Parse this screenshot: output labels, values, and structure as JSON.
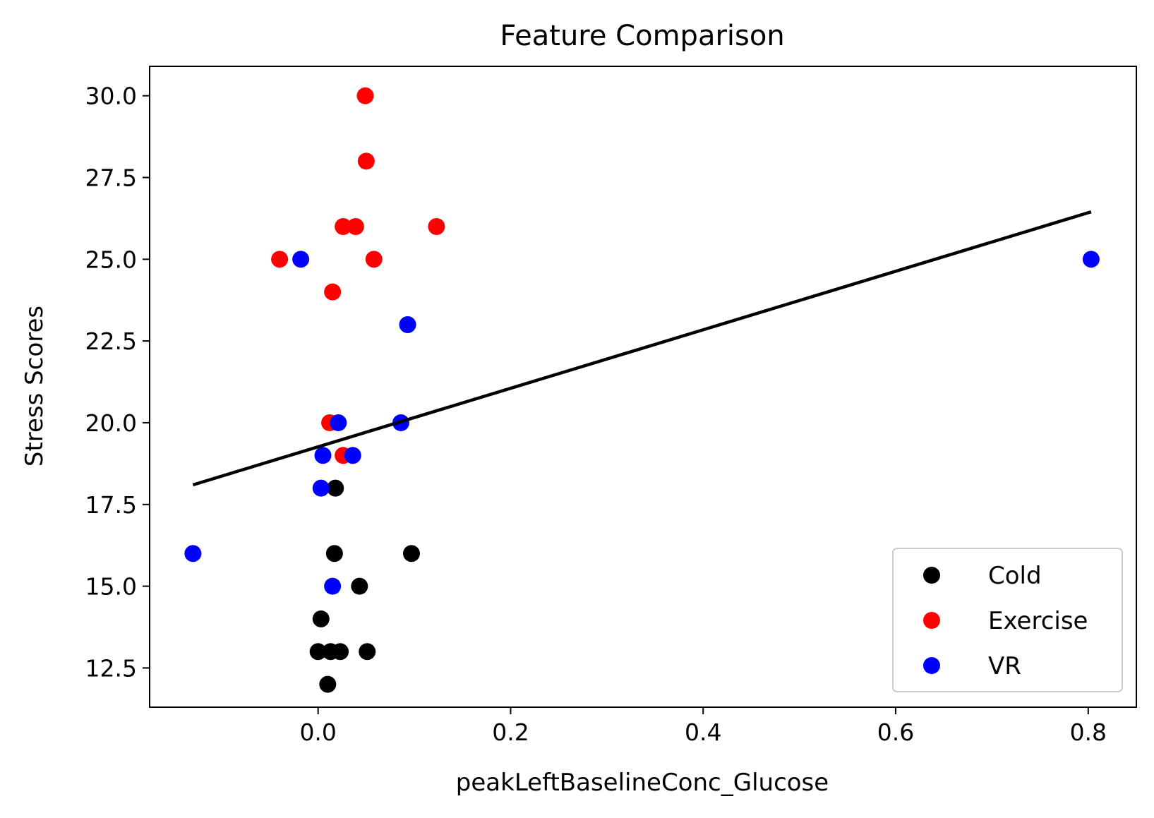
{
  "chart_data": {
    "type": "scatter",
    "title": "Feature Comparison",
    "xlabel": "peakLeftBaselineConc_Glucose",
    "ylabel": "Stress Scores",
    "xlim": [
      -0.175,
      0.85
    ],
    "ylim": [
      11.3,
      30.9
    ],
    "x_ticks": [
      0.0,
      0.2,
      0.4,
      0.6,
      0.8
    ],
    "x_tick_labels": [
      "0.0",
      "0.2",
      "0.4",
      "0.6",
      "0.8"
    ],
    "y_ticks": [
      12.5,
      15.0,
      17.5,
      20.0,
      22.5,
      25.0,
      27.5,
      30.0
    ],
    "y_tick_labels": [
      "12.5",
      "15.0",
      "17.5",
      "20.0",
      "22.5",
      "25.0",
      "27.5",
      "30.0"
    ],
    "grid": false,
    "legend_position": "bottom-right",
    "series": [
      {
        "name": "Cold",
        "color": "#000000",
        "points": [
          {
            "x": 0.018,
            "y": 18
          },
          {
            "x": 0.017,
            "y": 16
          },
          {
            "x": 0.097,
            "y": 16
          },
          {
            "x": 0.043,
            "y": 15
          },
          {
            "x": 0.003,
            "y": 14
          },
          {
            "x": 0.0,
            "y": 13
          },
          {
            "x": 0.013,
            "y": 13
          },
          {
            "x": 0.023,
            "y": 13
          },
          {
            "x": 0.051,
            "y": 13
          },
          {
            "x": 0.01,
            "y": 12
          }
        ]
      },
      {
        "name": "Exercise",
        "color": "#ff0000",
        "points": [
          {
            "x": 0.049,
            "y": 30
          },
          {
            "x": 0.05,
            "y": 28
          },
          {
            "x": 0.026,
            "y": 26
          },
          {
            "x": 0.039,
            "y": 26
          },
          {
            "x": 0.123,
            "y": 26
          },
          {
            "x": -0.04,
            "y": 25
          },
          {
            "x": 0.058,
            "y": 25
          },
          {
            "x": 0.015,
            "y": 24
          },
          {
            "x": 0.012,
            "y": 20
          },
          {
            "x": 0.026,
            "y": 19
          }
        ]
      },
      {
        "name": "VR",
        "color": "#0000ff",
        "points": [
          {
            "x": -0.018,
            "y": 25
          },
          {
            "x": 0.803,
            "y": 25
          },
          {
            "x": 0.093,
            "y": 23
          },
          {
            "x": 0.021,
            "y": 20
          },
          {
            "x": 0.086,
            "y": 20
          },
          {
            "x": 0.005,
            "y": 19
          },
          {
            "x": 0.036,
            "y": 19
          },
          {
            "x": 0.003,
            "y": 18
          },
          {
            "x": -0.13,
            "y": 16
          },
          {
            "x": 0.015,
            "y": 15
          }
        ]
      }
    ],
    "fit_line": {
      "color": "#000000",
      "x": [
        -0.13,
        0.803
      ],
      "y": [
        18.1,
        26.45
      ]
    }
  }
}
